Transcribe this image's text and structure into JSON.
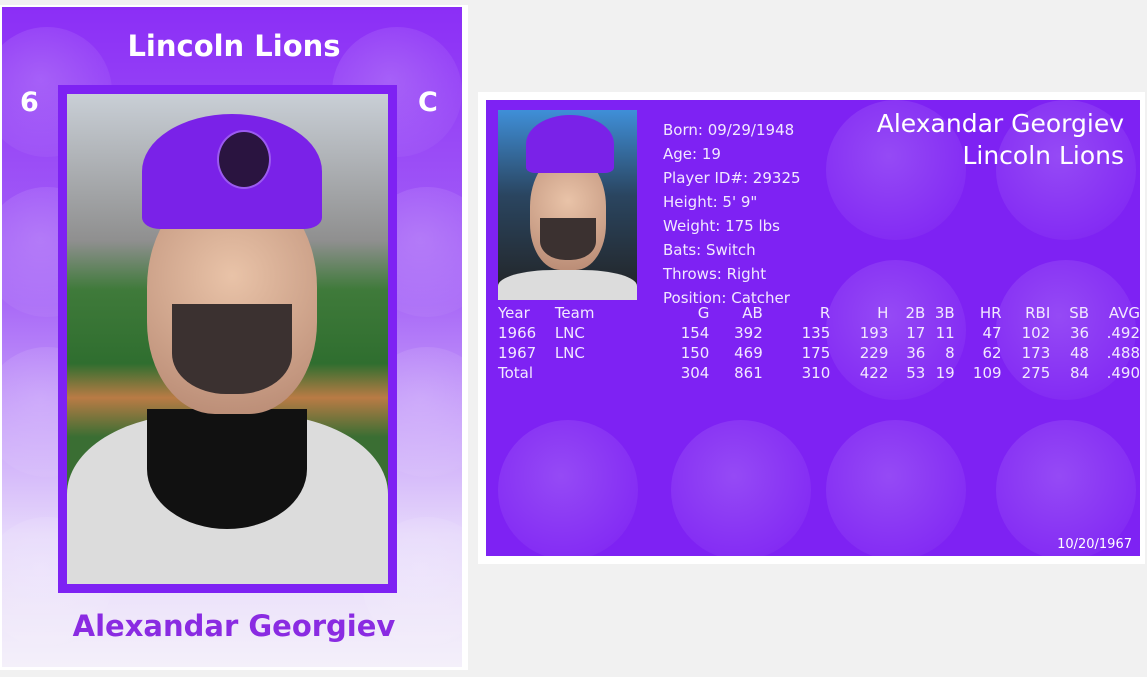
{
  "front": {
    "team": "Lincoln Lions",
    "number": "6",
    "position": "C",
    "name": "Alexandar Georgiev"
  },
  "back": {
    "name": "Alexandar Georgiev",
    "team": "Lincoln Lions",
    "bio": [
      "Born: 09/29/1948",
      "Age: 19",
      "Player ID#: 29325",
      "Height: 5' 9\"",
      "Weight: 175 lbs",
      "Bats: Switch",
      "Throws: Right",
      "Position: Catcher"
    ],
    "stats": {
      "headers": [
        "Year",
        "Team",
        "G",
        "AB",
        "R",
        "H",
        "2B",
        "3B",
        "HR",
        "RBI",
        "SB",
        "AVG"
      ],
      "rows": [
        [
          "1966",
          "LNC",
          "154",
          "392",
          "135",
          "193",
          "17",
          "11",
          "47",
          "102",
          "36",
          ".492"
        ],
        [
          "1967",
          "LNC",
          "150",
          "469",
          "175",
          "229",
          "36",
          "8",
          "62",
          "173",
          "48",
          ".488"
        ],
        [
          "Total",
          "",
          "304",
          "861",
          "310",
          "422",
          "53",
          "19",
          "109",
          "275",
          "84",
          ".490"
        ]
      ]
    },
    "date": "10/20/1967"
  },
  "colors": {
    "card_purple": "#7e22f3",
    "name_purple": "#8a2be2"
  }
}
